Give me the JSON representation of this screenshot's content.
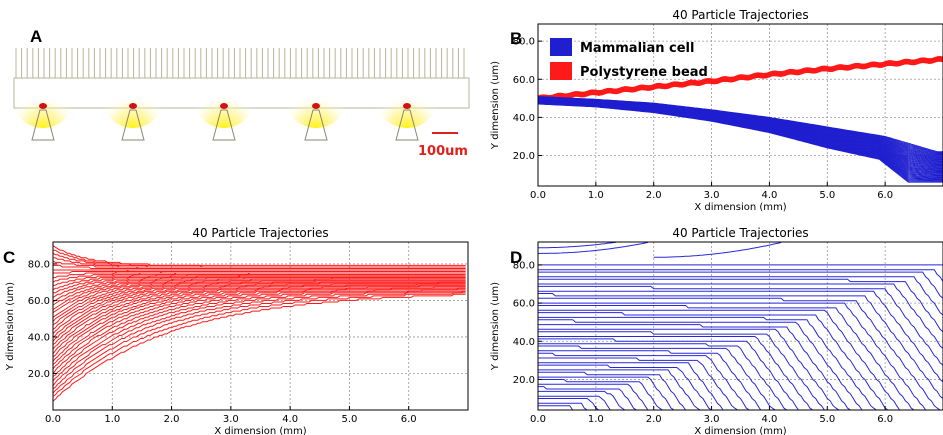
{
  "panels": {
    "a": {
      "letter": "A",
      "scale_label": "100um",
      "scale_color": "#e0201b"
    },
    "b": {
      "letter": "B"
    },
    "c": {
      "letter": "C"
    },
    "d": {
      "letter": "D"
    }
  },
  "chart_data": [
    {
      "id": "b",
      "type": "line",
      "title": "40 Particle Trajectories",
      "xlabel": "X dimension (mm)",
      "ylabel": "Y dimension (um)",
      "xlim": [
        0.0,
        7.0
      ],
      "ylim": [
        4.0,
        89.0
      ],
      "x_ticks": [
        "0.0",
        "1.0",
        "2.0",
        "3.0",
        "4.0",
        "5.0",
        "6.0"
      ],
      "y_ticks": [
        "20.0",
        "40.0",
        "60.0",
        "80.0"
      ],
      "grid": true,
      "legend": {
        "placement": "top-left",
        "entries": [
          {
            "label": "Mammalian cell",
            "color": "#1f1fd0"
          },
          {
            "label": "Polystyrene bead",
            "color": "#ff1a1a"
          }
        ]
      },
      "series": [
        {
          "name": "Mammalian cell",
          "color": "#1f1fd0",
          "count": 40,
          "description": "trajectories start near y=50 at x=0 and sweep downward, reaching the channel bottom between x=6.0 and 7.0",
          "start_y": [
            47,
            51
          ],
          "points_top": [
            [
              0,
              51
            ],
            [
              1,
              49.5
            ],
            [
              2,
              47.5
            ],
            [
              3,
              44
            ],
            [
              4,
              40
            ],
            [
              5,
              35
            ],
            [
              6,
              30
            ],
            [
              6.9,
              22
            ]
          ],
          "points_bottom": [
            [
              0,
              47
            ],
            [
              1,
              45.5
            ],
            [
              2,
              42.5
            ],
            [
              3,
              38
            ],
            [
              4,
              32
            ],
            [
              5,
              24
            ],
            [
              5.9,
              18
            ],
            [
              6.4,
              6
            ]
          ]
        },
        {
          "name": "Polystyrene bead",
          "color": "#ff1a1a",
          "count": 40,
          "points": [
            [
              0,
              50
            ],
            [
              1,
              53
            ],
            [
              2,
              56
            ],
            [
              3,
              59
            ],
            [
              4,
              62.5
            ],
            [
              5,
              65.5
            ],
            [
              6,
              68
            ],
            [
              7,
              70.5
            ]
          ]
        }
      ]
    },
    {
      "id": "c",
      "type": "line",
      "title": "40 Particle Trajectories",
      "xlabel": "X dimension (mm)",
      "ylabel": "Y dimension (um)",
      "xlim": [
        0.0,
        7.0
      ],
      "ylim": [
        0.0,
        92.0
      ],
      "x_ticks": [
        "0.0",
        "1.0",
        "2.0",
        "3.0",
        "4.0",
        "5.0",
        "6.0"
      ],
      "y_ticks": [
        "20.0",
        "40.0",
        "60.0",
        "80.0"
      ],
      "grid": true,
      "series": [
        {
          "name": "",
          "color": "#ff1a1a",
          "count": 40,
          "description": "40 trajectories start spread between y=5 and y=90 and converge toward a band between y=65 and y=80",
          "start_top": 90,
          "start_bottom": 5,
          "end_top": 79,
          "end_bottom": 65
        }
      ]
    },
    {
      "id": "d",
      "type": "line",
      "title": "40 Particle Trajectories",
      "xlabel": "X dimension (mm)",
      "ylabel": "Y dimension (um)",
      "xlim": [
        0.0,
        7.0
      ],
      "ylim": [
        4.0,
        92.0
      ],
      "x_ticks": [
        "0.0",
        "1.0",
        "2.0",
        "3.0",
        "4.0",
        "5.0",
        "6.0"
      ],
      "y_ticks": [
        "20.0",
        "40.0",
        "60.0",
        "80.0"
      ],
      "grid": true,
      "series": [
        {
          "name": "",
          "color": "#2828d8",
          "count": 40,
          "description": "nearly horizontal trajectories between y=4 and y=80 that step downward to the channel bottom; a few upper ones curve to the top edge"
        }
      ]
    }
  ]
}
